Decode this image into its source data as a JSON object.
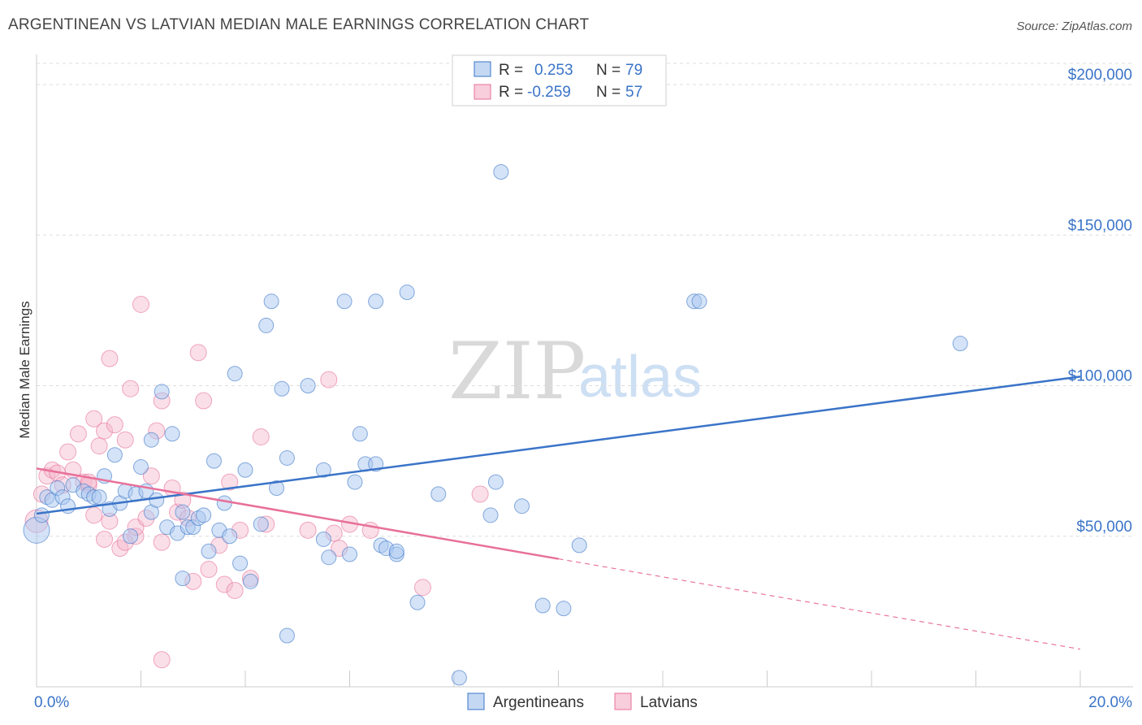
{
  "title": "ARGENTINEAN VS LATVIAN MEDIAN MALE EARNINGS CORRELATION CHART",
  "source": "Source: ZipAtlas.com",
  "watermark": {
    "zip": "ZIP",
    "atlas": "atlas"
  },
  "colors": {
    "blue": "#3a74c8",
    "blue_fill": "#a9c8ef",
    "pink": "#e8709a",
    "pink_fill": "#f5b8cc",
    "grid": "#dddddd"
  },
  "chart_data": {
    "type": "scatter",
    "title": "ARGENTINEAN VS LATVIAN MEDIAN MALE EARNINGS CORRELATION CHART",
    "xlabel": "",
    "ylabel": "Median Male Earnings",
    "xlim": [
      0,
      20
    ],
    "ylim": [
      0,
      210000
    ],
    "x_tick_labels": {
      "left": "0.0%",
      "right": "20.0%"
    },
    "y_ticks": [
      {
        "value": 50000,
        "label": "$50,000"
      },
      {
        "value": 100000,
        "label": "$100,000"
      },
      {
        "value": 150000,
        "label": "$150,000"
      },
      {
        "value": 200000,
        "label": "$200,000"
      }
    ],
    "legend_stats": [
      {
        "r_label": "R =",
        "r_value": "0.253",
        "n_label": "N =",
        "n_value": "79"
      },
      {
        "r_label": "R =",
        "r_value": "-0.259",
        "n_label": "N =",
        "n_value": "57"
      }
    ],
    "series": [
      {
        "name": "Argentineans",
        "trend": {
          "x0": 0,
          "y0": 57500,
          "x1": 20,
          "y1": 103000
        },
        "points": [
          [
            0.0,
            52000
          ],
          [
            0.1,
            57000
          ],
          [
            0.2,
            63000
          ],
          [
            0.3,
            62000
          ],
          [
            0.4,
            66000
          ],
          [
            0.5,
            63000
          ],
          [
            0.6,
            60000
          ],
          [
            0.7,
            67000
          ],
          [
            0.9,
            65000
          ],
          [
            1.0,
            64000
          ],
          [
            1.1,
            63000
          ],
          [
            1.2,
            63000
          ],
          [
            1.4,
            59000
          ],
          [
            1.5,
            77000
          ],
          [
            1.6,
            61000
          ],
          [
            1.7,
            65000
          ],
          [
            1.8,
            50000
          ],
          [
            1.9,
            64000
          ],
          [
            2.0,
            73000
          ],
          [
            2.1,
            65000
          ],
          [
            2.2,
            58000
          ],
          [
            2.2,
            82000
          ],
          [
            2.3,
            62000
          ],
          [
            2.4,
            98000
          ],
          [
            2.6,
            84000
          ],
          [
            2.5,
            53000
          ],
          [
            2.7,
            51000
          ],
          [
            2.8,
            58000
          ],
          [
            2.9,
            53000
          ],
          [
            2.8,
            36000
          ],
          [
            3.0,
            53000
          ],
          [
            3.1,
            56000
          ],
          [
            3.3,
            45000
          ],
          [
            3.4,
            75000
          ],
          [
            3.5,
            52000
          ],
          [
            3.6,
            61000
          ],
          [
            3.7,
            50000
          ],
          [
            3.8,
            104000
          ],
          [
            3.9,
            41000
          ],
          [
            4.0,
            72000
          ],
          [
            4.1,
            35000
          ],
          [
            4.3,
            54000
          ],
          [
            4.4,
            120000
          ],
          [
            4.5,
            128000
          ],
          [
            4.6,
            66000
          ],
          [
            4.7,
            99000
          ],
          [
            4.8,
            76000
          ],
          [
            4.8,
            17000
          ],
          [
            5.2,
            100000
          ],
          [
            5.5,
            49000
          ],
          [
            5.6,
            43000
          ],
          [
            5.5,
            72000
          ],
          [
            5.9,
            128000
          ],
          [
            6.0,
            44000
          ],
          [
            6.1,
            68000
          ],
          [
            6.2,
            84000
          ],
          [
            6.3,
            74000
          ],
          [
            6.5,
            128000
          ],
          [
            6.6,
            47000
          ],
          [
            6.5,
            74000
          ],
          [
            6.7,
            46000
          ],
          [
            6.9,
            44000
          ],
          [
            7.1,
            131000
          ],
          [
            7.3,
            28000
          ],
          [
            7.7,
            64000
          ],
          [
            8.1,
            3000
          ],
          [
            8.7,
            57000
          ],
          [
            8.8,
            68000
          ],
          [
            8.9,
            171000
          ],
          [
            9.3,
            60000
          ],
          [
            9.7,
            27000
          ],
          [
            10.1,
            26000
          ],
          [
            10.4,
            47000
          ],
          [
            12.6,
            128000
          ],
          [
            12.7,
            128000
          ],
          [
            17.7,
            114000
          ],
          [
            6.9,
            45000
          ],
          [
            3.2,
            57000
          ],
          [
            1.3,
            70000
          ]
        ]
      },
      {
        "name": "Latvians",
        "trend": {
          "x0": 0,
          "y0": 72500,
          "x1": 10,
          "y1": 42500
        },
        "trend_dashed": {
          "x0": 10,
          "y0": 42500,
          "x1": 20,
          "y1": 12500
        },
        "points": [
          [
            0.0,
            55000
          ],
          [
            0.1,
            64000
          ],
          [
            0.2,
            70000
          ],
          [
            0.3,
            72000
          ],
          [
            0.4,
            71000
          ],
          [
            0.5,
            67000
          ],
          [
            0.6,
            78000
          ],
          [
            0.7,
            72000
          ],
          [
            0.8,
            84000
          ],
          [
            0.9,
            68000
          ],
          [
            1.0,
            67000
          ],
          [
            1.1,
            57000
          ],
          [
            1.0,
            68000
          ],
          [
            1.2,
            80000
          ],
          [
            1.1,
            89000
          ],
          [
            1.3,
            49000
          ],
          [
            1.4,
            55000
          ],
          [
            1.3,
            85000
          ],
          [
            1.5,
            87000
          ],
          [
            1.4,
            109000
          ],
          [
            1.6,
            46000
          ],
          [
            1.7,
            48000
          ],
          [
            1.8,
            99000
          ],
          [
            1.7,
            82000
          ],
          [
            1.9,
            50000
          ],
          [
            1.9,
            53000
          ],
          [
            2.0,
            127000
          ],
          [
            2.1,
            56000
          ],
          [
            2.2,
            70000
          ],
          [
            2.3,
            85000
          ],
          [
            2.4,
            95000
          ],
          [
            2.4,
            48000
          ],
          [
            2.6,
            66000
          ],
          [
            2.7,
            58000
          ],
          [
            2.8,
            62000
          ],
          [
            2.9,
            56000
          ],
          [
            3.0,
            35000
          ],
          [
            3.1,
            111000
          ],
          [
            3.2,
            95000
          ],
          [
            3.3,
            39000
          ],
          [
            3.5,
            47000
          ],
          [
            3.6,
            34000
          ],
          [
            3.7,
            68000
          ],
          [
            3.8,
            32000
          ],
          [
            3.9,
            52000
          ],
          [
            4.1,
            36000
          ],
          [
            4.3,
            83000
          ],
          [
            4.4,
            54000
          ],
          [
            5.2,
            52000
          ],
          [
            5.6,
            102000
          ],
          [
            5.7,
            51000
          ],
          [
            5.8,
            46000
          ],
          [
            6.0,
            54000
          ],
          [
            6.4,
            52000
          ],
          [
            7.4,
            33000
          ],
          [
            8.5,
            64000
          ],
          [
            2.4,
            9000
          ]
        ]
      }
    ],
    "legend": [
      {
        "label": "Argentineans"
      },
      {
        "label": "Latvians"
      }
    ]
  }
}
